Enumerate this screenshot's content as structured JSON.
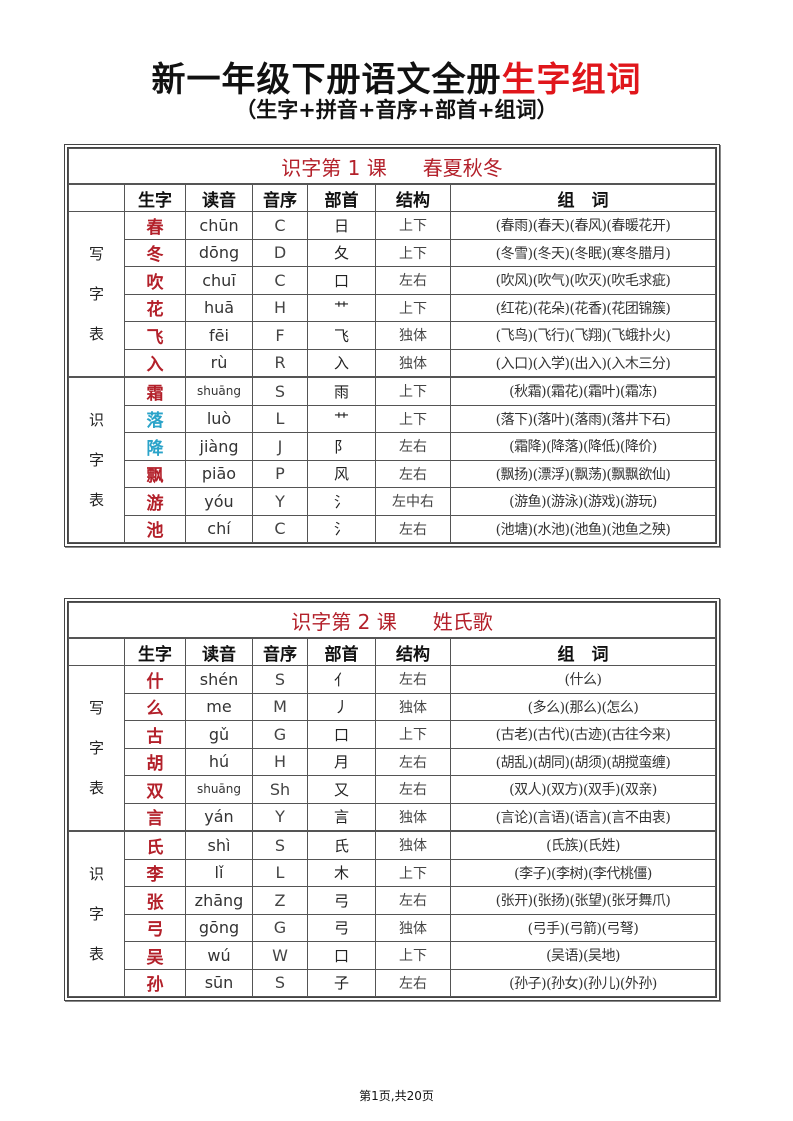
{
  "title": {
    "main": "新一年级下册语文全册",
    "highlight": "生字组词"
  },
  "subtitle": "（生字+拼音+音序+部首+组词）",
  "headers": [
    "生字",
    "读音",
    "音序",
    "部首",
    "结构",
    "组　词"
  ],
  "colors": {
    "accent_red": "#e0161b",
    "char_red": "#b3202a",
    "teal": "#2aa3c9"
  },
  "lessons": [
    {
      "lesson": "识字第 1 课",
      "name": "春夏秋冬",
      "groups": [
        {
          "label": [
            "写",
            "字",
            "表"
          ],
          "rows": [
            {
              "char": "春",
              "pinyin": "chūn",
              "order": "C",
              "radical": "日",
              "structure": "上下",
              "words": "(春雨)(春天)(春风)(春暖花开)"
            },
            {
              "char": "冬",
              "pinyin": "dōng",
              "order": "D",
              "radical": "夂",
              "structure": "上下",
              "words": "(冬雪)(冬天)(冬眠)(寒冬腊月)"
            },
            {
              "char": "吹",
              "pinyin": "chuī",
              "order": "C",
              "radical": "口",
              "structure": "左右",
              "words": "(吹风)(吹气)(吹灭)(吹毛求疵)"
            },
            {
              "char": "花",
              "pinyin": "huā",
              "order": "H",
              "radical": "艹",
              "structure": "上下",
              "words": "(红花)(花朵)(花香)(花团锦簇)"
            },
            {
              "char": "飞",
              "pinyin": "fēi",
              "order": "F",
              "radical": "飞",
              "structure": "独体",
              "words": "(飞鸟)(飞行)(飞翔)(飞蛾扑火)"
            },
            {
              "char": "入",
              "pinyin": "rù",
              "order": "R",
              "radical": "入",
              "structure": "独体",
              "words": "(入口)(入学)(出入)(入木三分)"
            }
          ]
        },
        {
          "label": [
            "识",
            "字",
            "表"
          ],
          "rows": [
            {
              "char": "霜",
              "pinyin": "shuāng",
              "order": "S",
              "radical": "雨",
              "structure": "上下",
              "words": "(秋霜)(霜花)(霜叶)(霜冻)"
            },
            {
              "char": "落",
              "pinyin": "luò",
              "order": "L",
              "radical": "艹",
              "structure": "上下",
              "words": "(落下)(落叶)(落雨)(落井下石)",
              "teal": true
            },
            {
              "char": "降",
              "pinyin": "jiàng",
              "order": "J",
              "radical": "阝",
              "structure": "左右",
              "words": "(霜降)(降落)(降低)(降价)",
              "teal": true
            },
            {
              "char": "飘",
              "pinyin": "piāo",
              "order": "P",
              "radical": "风",
              "structure": "左右",
              "words": "(飘扬)(漂浮)(飘荡)(飘飘欲仙)"
            },
            {
              "char": "游",
              "pinyin": "yóu",
              "order": "Y",
              "radical": "氵",
              "structure": "左中右",
              "words": "(游鱼)(游泳)(游戏)(游玩)"
            },
            {
              "char": "池",
              "pinyin": "chí",
              "order": "C",
              "radical": "氵",
              "structure": "左右",
              "words": "(池塘)(水池)(池鱼)(池鱼之殃)"
            }
          ]
        }
      ]
    },
    {
      "lesson": "识字第 2 课",
      "name": "姓氏歌",
      "groups": [
        {
          "label": [
            "写",
            "字",
            "表"
          ],
          "rows": [
            {
              "char": "什",
              "pinyin": "shén",
              "order": "S",
              "radical": "亻",
              "structure": "左右",
              "words": "(什么)"
            },
            {
              "char": "么",
              "pinyin": "me",
              "order": "M",
              "radical": "丿",
              "structure": "独体",
              "words": "(多么)(那么)(怎么)"
            },
            {
              "char": "古",
              "pinyin": "gǔ",
              "order": "G",
              "radical": "口",
              "structure": "上下",
              "words": "(古老)(古代)(古迹)(古往今来)"
            },
            {
              "char": "胡",
              "pinyin": "hú",
              "order": "H",
              "radical": "月",
              "structure": "左右",
              "words": "(胡乱)(胡同)(胡须)(胡搅蛮缠)"
            },
            {
              "char": "双",
              "pinyin": "shuāng",
              "order": "Sh",
              "radical": "又",
              "structure": "左右",
              "words": "(双人)(双方)(双手)(双亲)"
            },
            {
              "char": "言",
              "pinyin": "yán",
              "order": "Y",
              "radical": "言",
              "structure": "独体",
              "words": "(言论)(言语)(语言)(言不由衷)"
            }
          ]
        },
        {
          "label": [
            "识",
            "字",
            "表"
          ],
          "rows": [
            {
              "char": "氏",
              "pinyin": "shì",
              "order": "S",
              "radical": "氏",
              "structure": "独体",
              "words": "(氏族)(氏姓)"
            },
            {
              "char": "李",
              "pinyin": "lǐ",
              "order": "L",
              "radical": "木",
              "structure": "上下",
              "words": "(李子)(李树)(李代桃僵)"
            },
            {
              "char": "张",
              "pinyin": "zhāng",
              "order": "Z",
              "radical": "弓",
              "structure": "左右",
              "words": "(张开)(张扬)(张望)(张牙舞爪)"
            },
            {
              "char": "弓",
              "pinyin": "gōng",
              "order": "G",
              "radical": "弓",
              "structure": "独体",
              "words": "(弓手)(弓箭)(弓弩)"
            },
            {
              "char": "吴",
              "pinyin": "wú",
              "order": "W",
              "radical": "口",
              "structure": "上下",
              "words": "(吴语)(吴地)"
            },
            {
              "char": "孙",
              "pinyin": "sūn",
              "order": "S",
              "radical": "子",
              "structure": "左右",
              "words": "(孙子)(孙女)(孙儿)(外孙)"
            }
          ]
        }
      ]
    }
  ],
  "footer": "第1页,共20页"
}
